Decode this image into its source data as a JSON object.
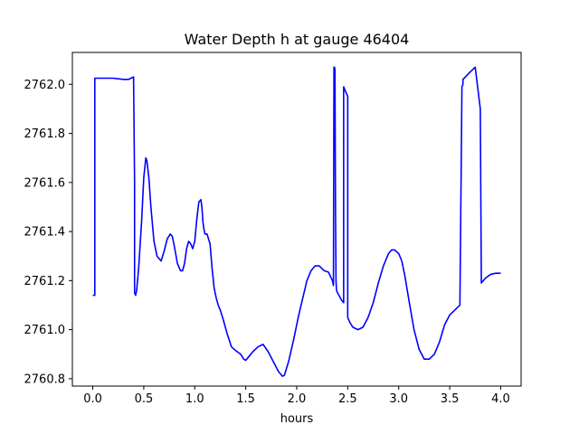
{
  "chart_data": {
    "type": "line",
    "title": "Water Depth h at gauge 46404",
    "xlabel": "hours",
    "ylabel": "",
    "xlim": [
      -0.2,
      4.2
    ],
    "ylim": [
      2760.77,
      2762.13
    ],
    "grid": false,
    "xticks": [
      0.0,
      0.5,
      1.0,
      1.5,
      2.0,
      2.5,
      3.0,
      3.5,
      4.0
    ],
    "xtick_labels": [
      "0.0",
      "0.5",
      "1.0",
      "1.5",
      "2.0",
      "2.5",
      "3.0",
      "3.5",
      "4.0"
    ],
    "yticks": [
      2760.8,
      2761.0,
      2761.2,
      2761.4,
      2761.6,
      2761.8,
      2762.0
    ],
    "ytick_labels": [
      "2760.8",
      "2761.0",
      "2761.2",
      "2761.4",
      "2761.6",
      "2761.8",
      "2762.0"
    ],
    "series": [
      {
        "color": "#0000ff",
        "x": [
          0.0,
          0.02,
          0.02,
          0.1,
          0.2,
          0.3,
          0.35,
          0.4,
          0.41,
          0.41,
          0.42,
          0.43,
          0.45,
          0.48,
          0.5,
          0.52,
          0.53,
          0.55,
          0.57,
          0.6,
          0.63,
          0.67,
          0.7,
          0.73,
          0.76,
          0.78,
          0.8,
          0.83,
          0.86,
          0.88,
          0.9,
          0.92,
          0.94,
          0.96,
          0.98,
          1.0,
          1.02,
          1.04,
          1.06,
          1.07,
          1.08,
          1.09,
          1.1,
          1.12,
          1.15,
          1.17,
          1.19,
          1.21,
          1.23,
          1.25,
          1.28,
          1.32,
          1.36,
          1.4,
          1.45,
          1.48,
          1.5,
          1.53,
          1.57,
          1.62,
          1.67,
          1.72,
          1.77,
          1.82,
          1.86,
          1.88,
          1.92,
          1.97,
          2.02,
          2.06,
          2.1,
          2.14,
          2.18,
          2.22,
          2.27,
          2.31,
          2.35,
          2.36,
          2.365,
          2.37,
          2.375,
          2.38,
          2.385,
          2.39,
          2.4,
          2.44,
          2.46,
          2.46,
          2.47,
          2.48,
          2.5,
          2.5,
          2.52,
          2.55,
          2.6,
          2.65,
          2.7,
          2.75,
          2.8,
          2.85,
          2.9,
          2.93,
          2.96,
          3.0,
          3.03,
          3.06,
          3.1,
          3.15,
          3.2,
          3.25,
          3.3,
          3.35,
          3.4,
          3.45,
          3.5,
          3.55,
          3.6,
          3.62,
          3.63,
          3.63,
          3.7,
          3.75,
          3.8,
          3.81,
          3.81,
          3.85,
          3.9,
          3.95,
          4.0
        ],
        "y": [
          2761.14,
          2761.14,
          2762.025,
          2762.025,
          2762.025,
          2762.02,
          2762.02,
          2762.03,
          2761.6,
          2761.15,
          2761.14,
          2761.16,
          2761.25,
          2761.45,
          2761.62,
          2761.7,
          2761.69,
          2761.62,
          2761.5,
          2761.36,
          2761.3,
          2761.28,
          2761.32,
          2761.37,
          2761.39,
          2761.38,
          2761.34,
          2761.27,
          2761.24,
          2761.24,
          2761.27,
          2761.33,
          2761.36,
          2761.35,
          2761.33,
          2761.36,
          2761.45,
          2761.52,
          2761.53,
          2761.5,
          2761.44,
          2761.41,
          2761.39,
          2761.39,
          2761.35,
          2761.25,
          2761.17,
          2761.13,
          2761.1,
          2761.08,
          2761.04,
          2760.98,
          2760.93,
          2760.915,
          2760.9,
          2760.88,
          2760.875,
          2760.89,
          2760.91,
          2760.93,
          2760.94,
          2760.91,
          2760.87,
          2760.83,
          2760.81,
          2760.815,
          2760.87,
          2760.96,
          2761.06,
          2761.13,
          2761.2,
          2761.24,
          2761.26,
          2761.26,
          2761.24,
          2761.235,
          2761.2,
          2761.18,
          2762.07,
          2762.07,
          2762.06,
          2761.5,
          2761.2,
          2761.16,
          2761.15,
          2761.12,
          2761.11,
          2761.99,
          2761.98,
          2761.97,
          2761.95,
          2761.05,
          2761.03,
          2761.01,
          2761.0,
          2761.01,
          2761.05,
          2761.11,
          2761.19,
          2761.26,
          2761.31,
          2761.325,
          2761.325,
          2761.31,
          2761.28,
          2761.22,
          2761.12,
          2761.0,
          2760.92,
          2760.88,
          2760.88,
          2760.9,
          2760.95,
          2761.02,
          2761.06,
          2761.08,
          2761.1,
          2761.99,
          2762.0,
          2762.02,
          2762.05,
          2762.07,
          2761.9,
          2761.2,
          2761.19,
          2761.21,
          2761.225,
          2761.23,
          2761.23
        ]
      }
    ]
  }
}
